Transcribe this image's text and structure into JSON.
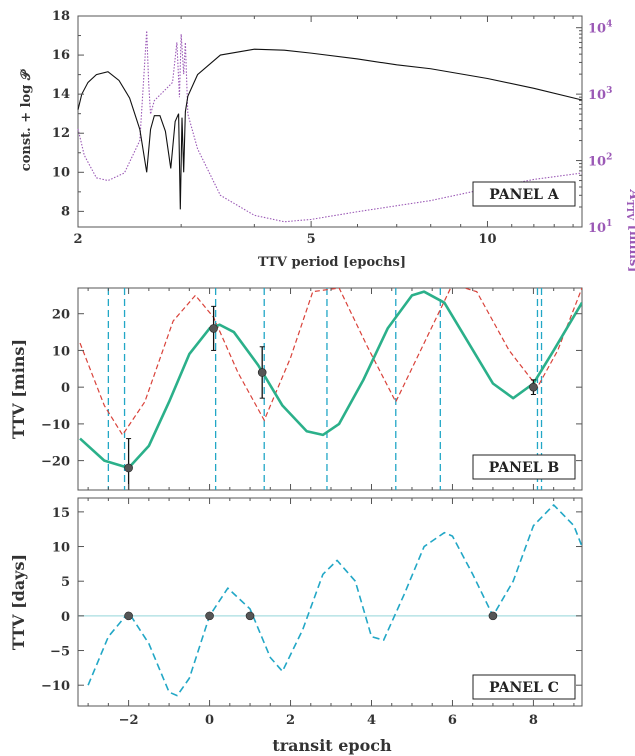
{
  "colors": {
    "black_curve": "#111111",
    "purple": "#9b59b6",
    "green": "#2bb08a",
    "red_dashed": "#d9423a",
    "cyan": "#22a7c6",
    "light_line": "#a8dde0",
    "points": "#555555"
  },
  "chart_data": [
    {
      "type": "line",
      "panel": "PANEL A",
      "xlabel": "TTV period [epochs]",
      "ylabel": "const. + log 𝒫",
      "ylabel_right": "A_TTV [mins]",
      "xscale": "log",
      "xlim": [
        2,
        14.5
      ],
      "ylim": [
        7.2,
        18
      ],
      "y2scale": "log",
      "y2lim": [
        10,
        15000
      ],
      "x_ticks": [
        2,
        5,
        10
      ],
      "y_ticks": [
        8,
        10,
        12,
        14,
        16,
        18
      ],
      "y2_ticks": [
        "10^1",
        "10^2",
        "10^3",
        "10^4"
      ],
      "series": [
        {
          "style": "solid",
          "color": "#111111",
          "x": [
            2.0,
            2.03,
            2.08,
            2.15,
            2.25,
            2.35,
            2.45,
            2.55,
            2.62,
            2.66,
            2.7,
            2.76,
            2.82,
            2.88,
            2.93,
            2.97,
            2.99,
            3.01,
            3.03,
            3.05,
            3.08,
            3.2,
            3.5,
            4.0,
            4.5,
            5.0,
            6.0,
            7.0,
            8.0,
            10.0,
            12.0,
            14.5
          ],
          "y": [
            13.2,
            14.0,
            14.6,
            15.0,
            15.15,
            14.7,
            13.8,
            12.2,
            10.0,
            12.2,
            12.9,
            12.9,
            12.1,
            10.2,
            12.6,
            13.0,
            8.1,
            12.8,
            10.0,
            13.1,
            13.9,
            15.0,
            16.0,
            16.3,
            16.25,
            16.1,
            15.8,
            15.5,
            15.3,
            14.8,
            14.3,
            13.7
          ]
        },
        {
          "style": "dotted",
          "color": "#9b59b6",
          "x": [
            2.0,
            2.05,
            2.15,
            2.25,
            2.4,
            2.55,
            2.62,
            2.64,
            2.66,
            2.7,
            2.8,
            2.9,
            2.95,
            2.98,
            3.0,
            3.03,
            3.05,
            3.08,
            3.2,
            3.5,
            4.0,
            4.5,
            5.0,
            6.0,
            8.0,
            10.0,
            12.0,
            14.5
          ],
          "y": [
            300,
            120,
            55,
            50,
            65,
            200,
            9000,
            1500,
            500,
            800,
            1100,
            1500,
            6000,
            900,
            8000,
            2000,
            6000,
            500,
            150,
            30,
            15,
            12,
            13,
            17,
            25,
            38,
            52,
            65
          ]
        }
      ]
    },
    {
      "type": "line",
      "panel": "PANEL B",
      "ylabel": "TTV [mins]",
      "xlim": [
        -3.25,
        9.2
      ],
      "ylim": [
        -28,
        27
      ],
      "y_ticks": [
        -20,
        -10,
        0,
        10,
        20
      ],
      "series": [
        {
          "style": "solid",
          "color": "#2bb08a",
          "x": [
            -3.2,
            -2.6,
            -2.0,
            -1.5,
            -1.0,
            -0.5,
            0.0,
            0.25,
            0.6,
            1.2,
            1.8,
            2.4,
            2.8,
            3.2,
            3.8,
            4.4,
            5.0,
            5.3,
            5.8,
            6.4,
            7.0,
            7.5,
            8.0,
            8.5,
            9.2
          ],
          "y": [
            -14,
            -20,
            -22,
            -16,
            -4,
            9,
            16,
            17,
            15,
            6,
            -5,
            -12,
            -13,
            -10,
            2,
            16,
            25,
            26,
            23,
            12,
            1,
            -3,
            1,
            10,
            23
          ]
        },
        {
          "style": "dashed",
          "color": "#d9423a",
          "x": [
            -3.2,
            -2.6,
            -2.15,
            -1.6,
            -0.9,
            -0.35,
            0.1,
            0.7,
            1.35,
            2.0,
            2.55,
            3.2,
            3.9,
            4.6,
            5.3,
            6.0,
            6.6,
            7.4,
            8.1,
            8.6,
            9.2
          ],
          "y": [
            12,
            -5,
            -13,
            -4,
            18,
            25,
            19,
            4,
            -9,
            8,
            26,
            27,
            11,
            -4,
            12,
            28,
            26,
            10,
            0,
            10,
            27
          ]
        }
      ],
      "points": [
        {
          "x": -2.0,
          "y": -22,
          "err": 8
        },
        {
          "x": 0.1,
          "y": 16,
          "err": 6
        },
        {
          "x": 1.3,
          "y": 4,
          "err": 7
        },
        {
          "x": 8.0,
          "y": 0,
          "err": 2
        }
      ],
      "vlines": [
        -2.5,
        -2.1,
        0.15,
        1.35,
        2.9,
        4.6,
        5.7,
        8.1,
        8.2
      ]
    },
    {
      "type": "line",
      "panel": "PANEL C",
      "xlabel": "transit epoch",
      "ylabel": "TTV [days]",
      "xlim": [
        -3.25,
        9.2
      ],
      "ylim": [
        -13,
        17
      ],
      "x_ticks": [
        -2,
        0,
        2,
        4,
        6,
        8
      ],
      "y_ticks": [
        -10,
        -5,
        0,
        5,
        10,
        15
      ],
      "series": [
        {
          "style": "dashed",
          "color": "#22a7c6",
          "x": [
            -3.0,
            -2.5,
            -2.0,
            -1.5,
            -1.0,
            -0.8,
            -0.5,
            0.0,
            0.45,
            1.0,
            1.5,
            1.8,
            2.3,
            2.8,
            3.15,
            3.6,
            4.0,
            4.3,
            4.8,
            5.3,
            5.8,
            6.0,
            6.5,
            7.0,
            7.5,
            8.0,
            8.5,
            9.0,
            9.2
          ],
          "y": [
            -10,
            -3,
            0.5,
            -4,
            -11,
            -11.5,
            -9,
            0,
            4,
            1,
            -6,
            -8,
            -2,
            6,
            8,
            5,
            -3,
            -3.5,
            3,
            10,
            12,
            11.5,
            6,
            0,
            5,
            13,
            16,
            13,
            10
          ]
        }
      ],
      "points": [
        {
          "x": -2,
          "y": 0
        },
        {
          "x": 0,
          "y": 0
        },
        {
          "x": 1,
          "y": 0
        },
        {
          "x": 7,
          "y": 0
        }
      ],
      "hline": 0
    }
  ]
}
